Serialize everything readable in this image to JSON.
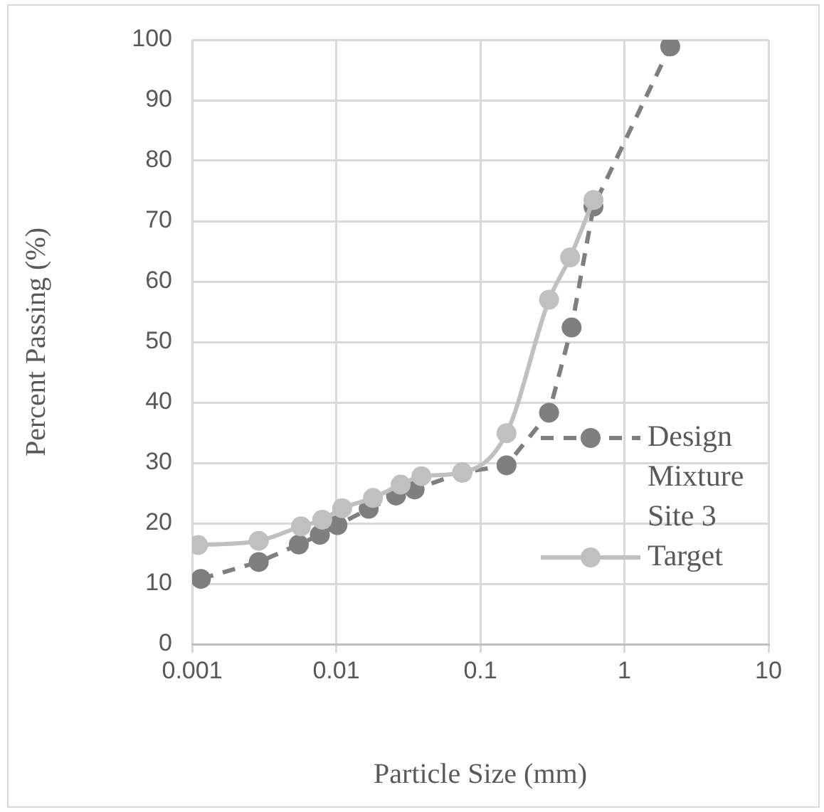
{
  "chart_data": {
    "type": "line",
    "xlabel": "Particle Size (mm)",
    "ylabel": "Percent Passing (%)",
    "log": "x",
    "xlim": [
      0.001,
      10
    ],
    "xticks": [
      0.001,
      0.01,
      0.1,
      1,
      10
    ],
    "ylim": [
      0,
      100
    ],
    "yticks": [
      0,
      10,
      20,
      30,
      40,
      50,
      60,
      70,
      80,
      90,
      100
    ],
    "grid": true,
    "legend": "right",
    "marker": "circle",
    "series": [
      {
        "name": "Design Mixture Site 3",
        "color": "#7f7f7f",
        "line_style": "dashed",
        "x": [
          0.00115,
          0.0029,
          0.0055,
          0.0077,
          0.0102,
          0.0168,
          0.026,
          0.035,
          0.075,
          0.152,
          0.3,
          0.43,
          0.61,
          2.08
        ],
        "values": [
          10.8,
          13.6,
          16.5,
          18.1,
          19.7,
          22.4,
          24.6,
          25.6,
          28.4,
          29.6,
          38.3,
          52.4,
          72.4,
          98.9
        ]
      },
      {
        "name": "Target",
        "color": "#c0c0c0",
        "line_style": "solid",
        "x": [
          0.0011,
          0.0029,
          0.0057,
          0.008,
          0.011,
          0.018,
          0.028,
          0.039,
          0.075,
          0.152,
          0.3,
          0.42,
          0.61
        ],
        "values": [
          16.4,
          17.1,
          19.5,
          20.6,
          22.5,
          24.2,
          26.4,
          27.8,
          28.4,
          34.9,
          57,
          64,
          73.5
        ]
      }
    ]
  }
}
